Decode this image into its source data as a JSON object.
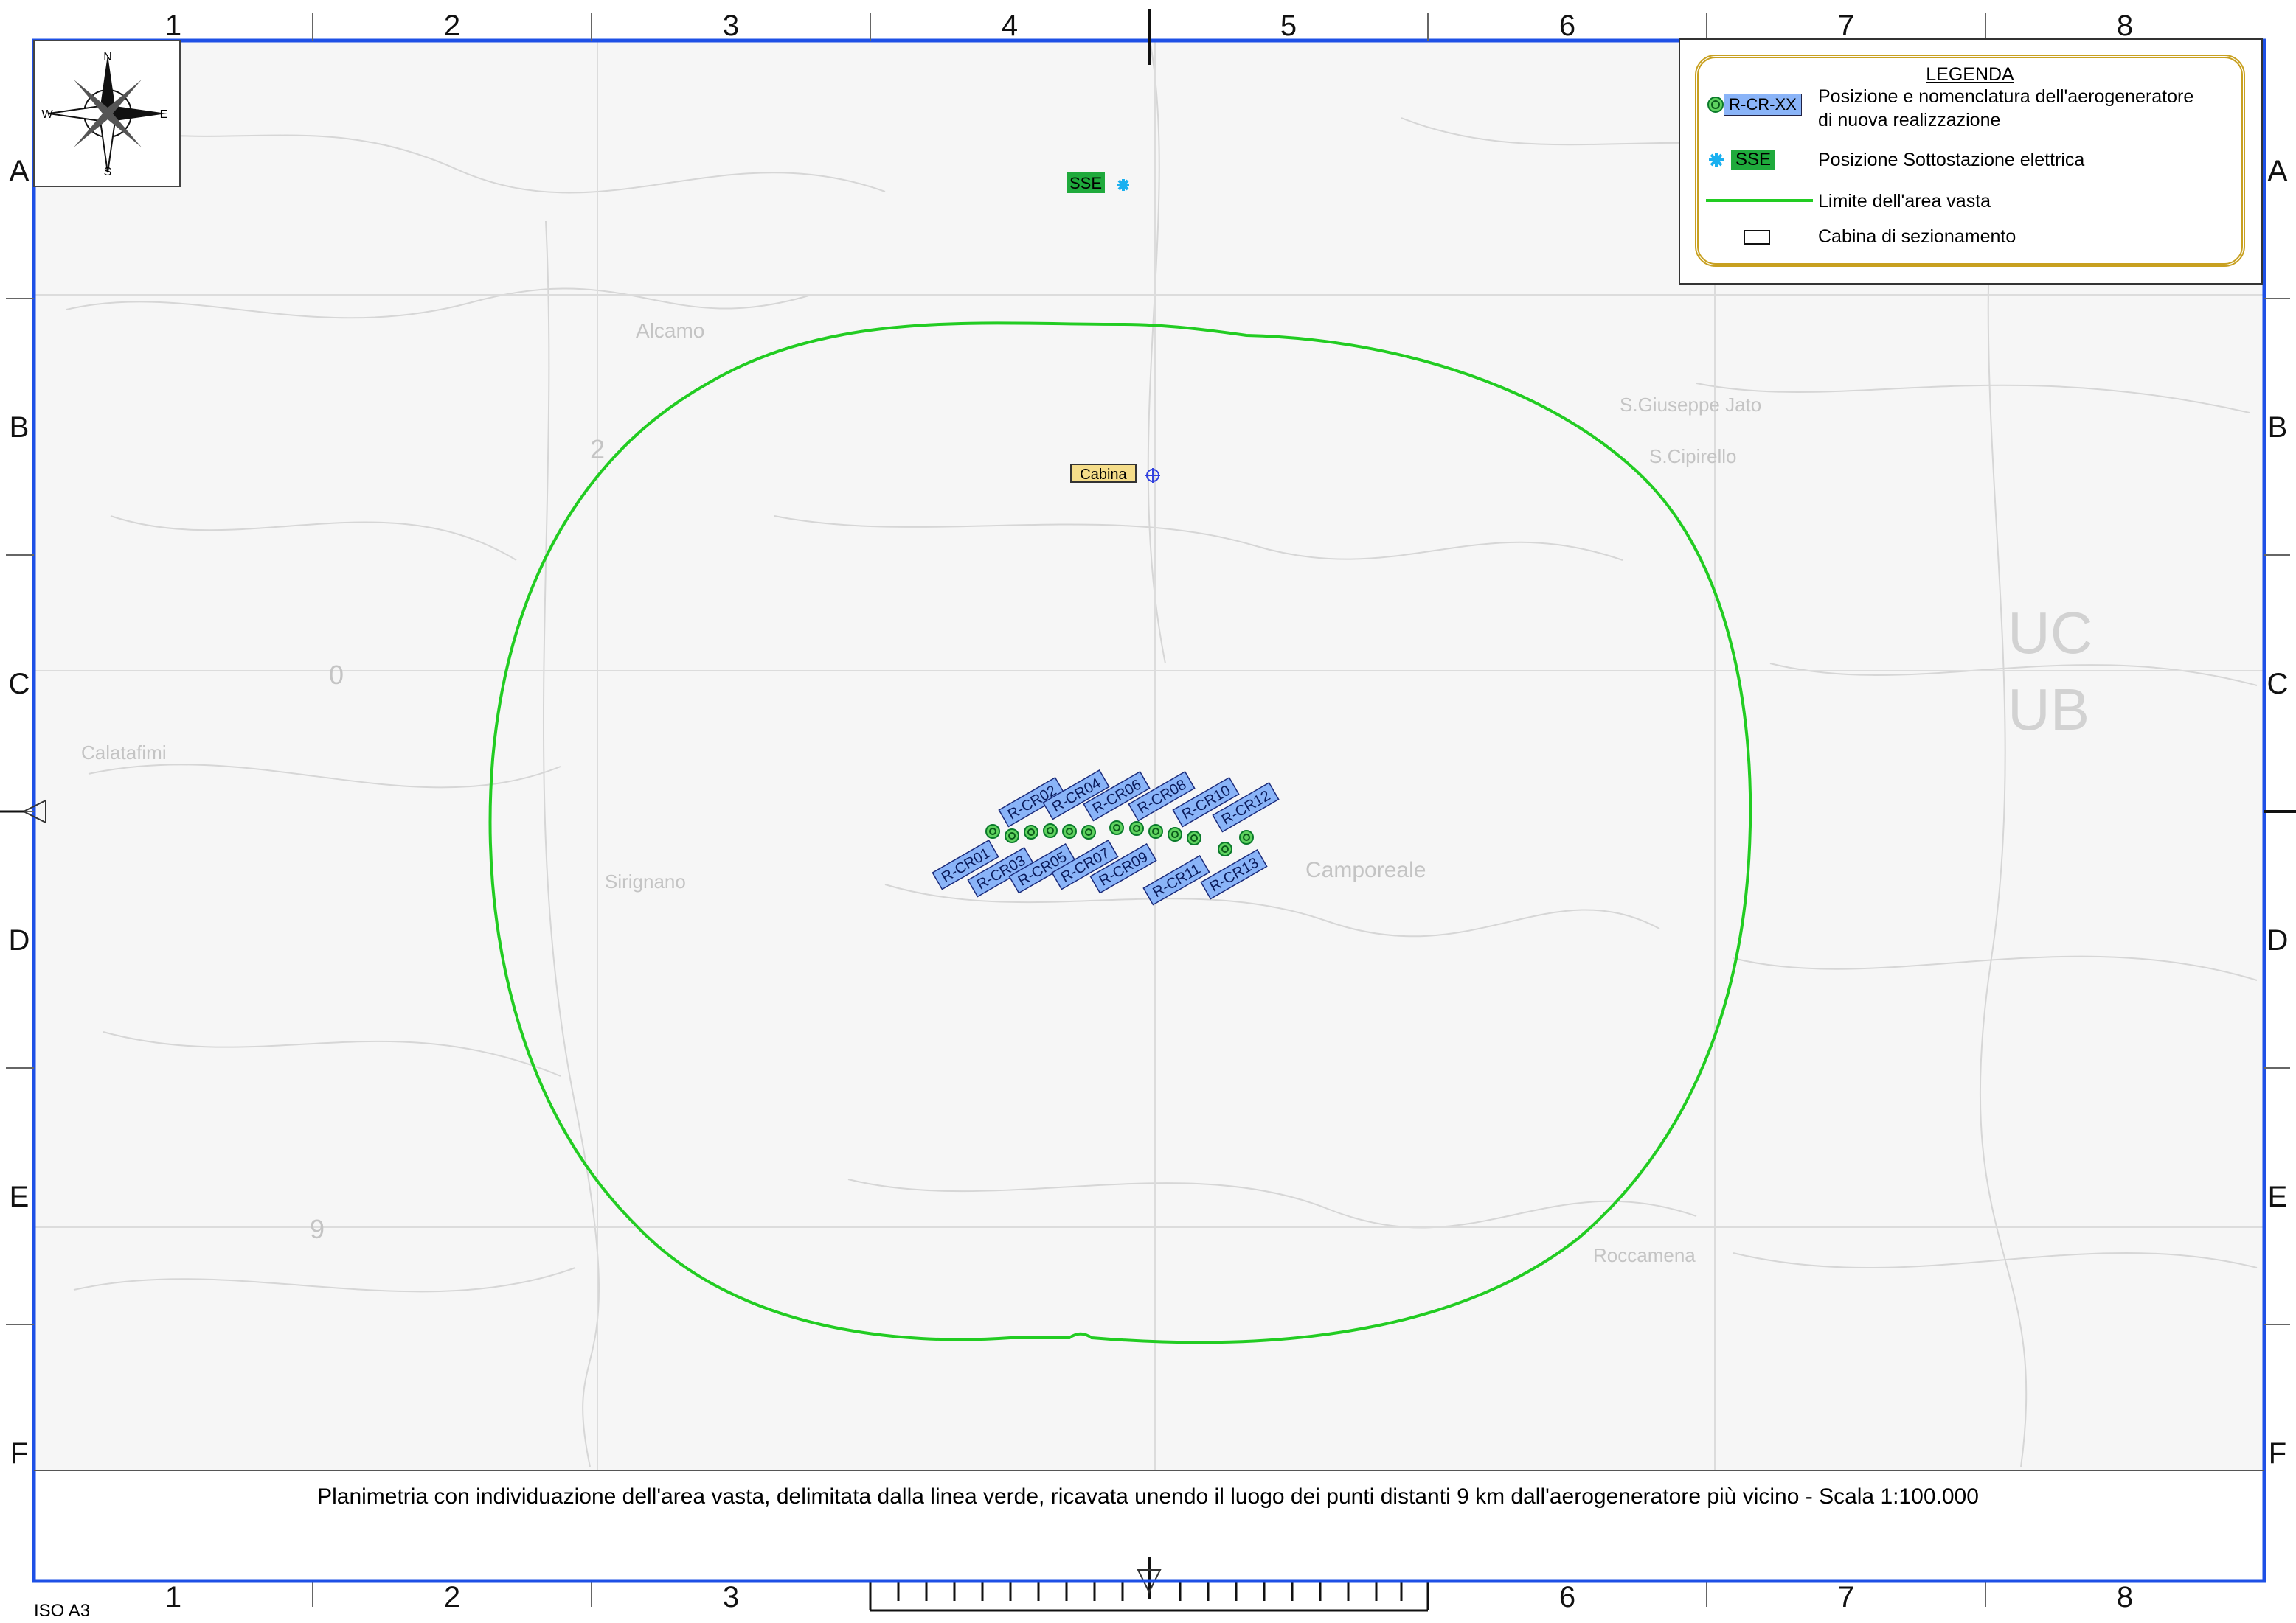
{
  "grid": {
    "columns": [
      "1",
      "2",
      "3",
      "4",
      "5",
      "6",
      "7",
      "8"
    ],
    "rows": [
      "A",
      "B",
      "C",
      "D",
      "E",
      "F"
    ]
  },
  "compass": {
    "north": "N",
    "south": "S",
    "east": "E",
    "west": "W",
    "icon": "compass-rose-icon"
  },
  "legend": {
    "title": "LEGENDA",
    "items": [
      {
        "symbol_label": "R-CR-XX",
        "text_line1": "Posizione e nomenclatura dell'aerogeneratore",
        "text_line2": "di nuova realizzazione",
        "color": "#8ab4f8"
      },
      {
        "symbol_label": "SSE",
        "text_line1": "Posizione Sottostazione elettrica",
        "color": "#1faa3c"
      },
      {
        "text_line1": "Limite dell'area vasta",
        "color": "#22cc22"
      },
      {
        "text_line1": "Cabina di sezionamento"
      }
    ]
  },
  "features": {
    "substation_label": "SSE",
    "cabin_label": "Cabina",
    "turbines": [
      "R-CR01",
      "R-CR02",
      "R-CR03",
      "R-CR04",
      "R-CR05",
      "R-CR06",
      "R-CR07",
      "R-CR08",
      "R-CR09",
      "R-CR10",
      "R-CR11",
      "R-CR12",
      "R-CR13"
    ]
  },
  "basemap": {
    "place_names": [
      "Calatafimi",
      "Sirignano",
      "Camporeale",
      "S.Giuseppe Jato",
      "S.Cipirello",
      "Roccamena",
      "Alcamo"
    ],
    "sheet_marks": [
      "UC",
      "UB"
    ],
    "grid_digits": [
      "2",
      "0",
      "9"
    ]
  },
  "caption": "Planimetria con individuazione dell'area vasta, delimitata dalla linea  verde, ricavata unendo il luogo dei punti distanti 9 km dall'aerogeneratore più vicino - Scala 1:100.000",
  "paper_size": "ISO A3",
  "colors": {
    "frame": "#1e50e6",
    "boundary": "#22cc22",
    "turbine_label": "#8ab4f8",
    "substation": "#1faa3c",
    "cabin": "#f5dd8a"
  }
}
